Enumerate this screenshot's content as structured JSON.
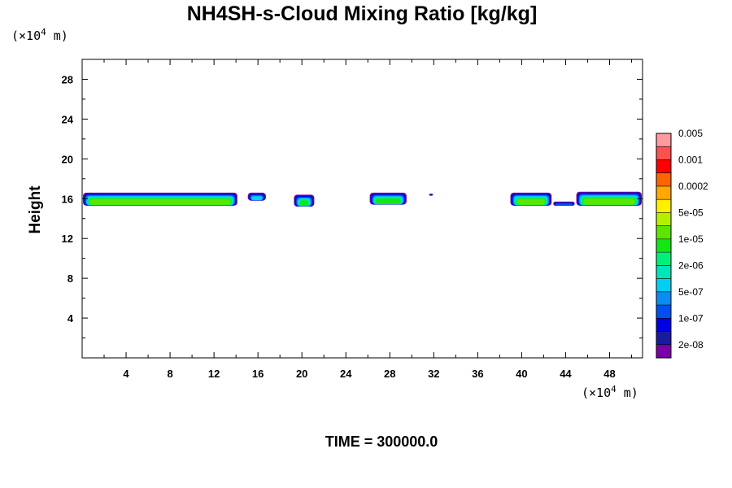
{
  "chart_data": {
    "type": "heatmap",
    "title": "NH4SH-s-Cloud Mixing Ratio [kg/kg]",
    "ylabel": "Height",
    "x_unit": {
      "prefix": "(×10",
      "exp": "4",
      "suffix": " m)"
    },
    "y_unit": {
      "prefix": "(×10",
      "exp": "4",
      "suffix": " m)"
    },
    "xlim": [
      0,
      51
    ],
    "ylim": [
      0,
      30
    ],
    "xticks": [
      4,
      8,
      12,
      16,
      20,
      24,
      28,
      32,
      36,
      40,
      44,
      48
    ],
    "yticks": [
      4,
      8,
      12,
      16,
      20,
      24,
      28
    ],
    "time_label": "TIME = 300000.0",
    "colorbar": {
      "colors": [
        "#7B00A8",
        "#1A1A9E",
        "#0000E6",
        "#0050F0",
        "#0A8CF0",
        "#00D0F0",
        "#00E6B8",
        "#00F07A",
        "#14E614",
        "#5AE600",
        "#B4F000",
        "#FFF000",
        "#FFA800",
        "#FF6400",
        "#FF0000",
        "#FF5050",
        "#FF9AA0"
      ],
      "labels": [
        "2e-08",
        "1e-07",
        "5e-07",
        "2e-06",
        "1e-05",
        "5e-05",
        "0.0002",
        "0.001",
        "0.005"
      ]
    },
    "cloud_features": [
      {
        "x": [
          0,
          14.2
        ],
        "base": 15.3,
        "top": 16.6,
        "core_level": 9
      },
      {
        "x": [
          15,
          16.8
        ],
        "base": 15.8,
        "top": 16.6,
        "core_level": 5
      },
      {
        "x": [
          19.2,
          21.2
        ],
        "base": 15.2,
        "top": 16.4,
        "core_level": 8
      },
      {
        "x": [
          26.1,
          29.6
        ],
        "base": 15.4,
        "top": 16.6,
        "core_level": 8
      },
      {
        "x": [
          31.5,
          32
        ],
        "base": 16.3,
        "top": 16.5,
        "core_level": 2
      },
      {
        "x": [
          38.9,
          42.8
        ],
        "base": 15.3,
        "top": 16.6,
        "core_level": 9
      },
      {
        "x": [
          42.8,
          44.9
        ],
        "base": 15.3,
        "top": 15.7,
        "core_level": 3
      },
      {
        "x": [
          44.9,
          51
        ],
        "base": 15.3,
        "top": 16.7,
        "core_level": 9
      }
    ]
  }
}
